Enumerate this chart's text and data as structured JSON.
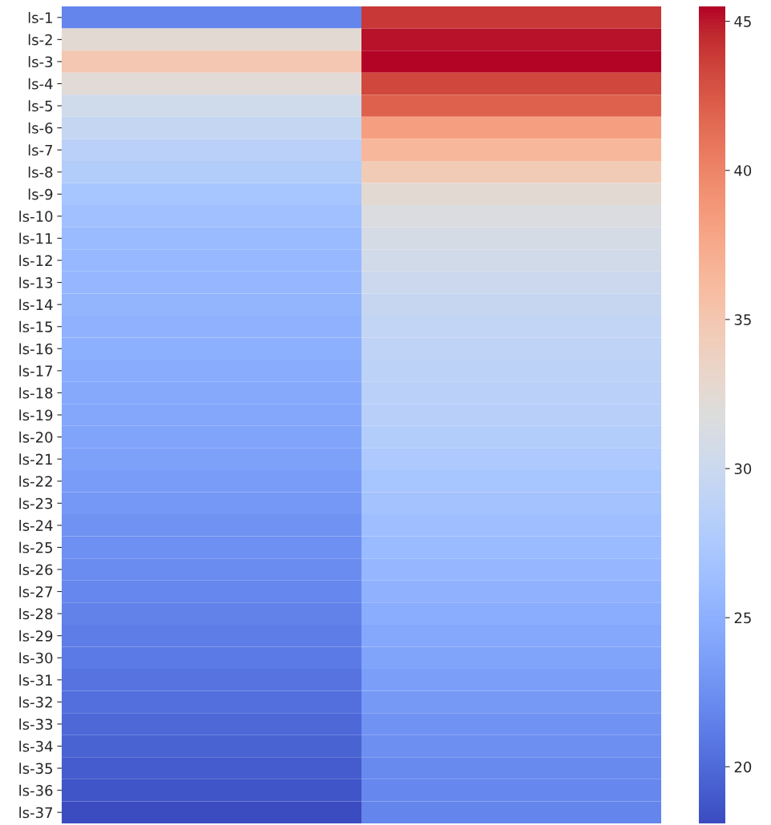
{
  "chart_data": {
    "type": "heatmap",
    "categories": [
      null,
      null
    ],
    "y_categories": [
      "ls-1",
      "ls-2",
      "ls-3",
      "ls-4",
      "ls-5",
      "ls-6",
      "ls-7",
      "ls-8",
      "ls-9",
      "ls-10",
      "ls-11",
      "ls-12",
      "ls-13",
      "ls-14",
      "ls-15",
      "ls-16",
      "ls-17",
      "ls-18",
      "ls-19",
      "ls-20",
      "ls-21",
      "ls-22",
      "ls-23",
      "ls-24",
      "ls-25",
      "ls-26",
      "ls-27",
      "ls-28",
      "ls-29",
      "ls-30",
      "ls-31",
      "ls-32",
      "ls-33",
      "ls-34",
      "ls-35",
      "ls-36",
      "ls-37"
    ],
    "cells": [
      [
        21.8,
        44.0
      ],
      [
        32.5,
        45.1
      ],
      [
        35.0,
        45.5
      ],
      [
        32.3,
        43.3
      ],
      [
        30.5,
        42.0
      ],
      [
        29.5,
        38.3
      ],
      [
        28.5,
        36.5
      ],
      [
        28.0,
        34.5
      ],
      [
        27.0,
        32.5
      ],
      [
        26.5,
        31.5
      ],
      [
        26.0,
        31.0
      ],
      [
        25.8,
        30.6
      ],
      [
        25.6,
        30.0
      ],
      [
        25.4,
        29.6
      ],
      [
        25.2,
        29.3
      ],
      [
        25.0,
        29.0
      ],
      [
        24.7,
        28.7
      ],
      [
        24.5,
        28.5
      ],
      [
        24.3,
        28.3
      ],
      [
        24.0,
        28.0
      ],
      [
        23.7,
        27.5
      ],
      [
        23.4,
        27.0
      ],
      [
        23.1,
        26.7
      ],
      [
        22.8,
        26.3
      ],
      [
        22.5,
        26.0
      ],
      [
        22.2,
        25.6
      ],
      [
        21.9,
        25.2
      ],
      [
        21.6,
        24.8
      ],
      [
        21.3,
        24.4
      ],
      [
        21.0,
        24.0
      ],
      [
        20.6,
        23.6
      ],
      [
        20.3,
        23.2
      ],
      [
        19.9,
        22.8
      ],
      [
        19.5,
        22.4
      ],
      [
        19.1,
        22.1
      ],
      [
        18.7,
        21.9
      ],
      [
        18.1,
        21.8
      ]
    ],
    "clim": [
      18.1,
      45.5
    ],
    "cticks": [
      20,
      25,
      30,
      35,
      40,
      45
    ]
  }
}
